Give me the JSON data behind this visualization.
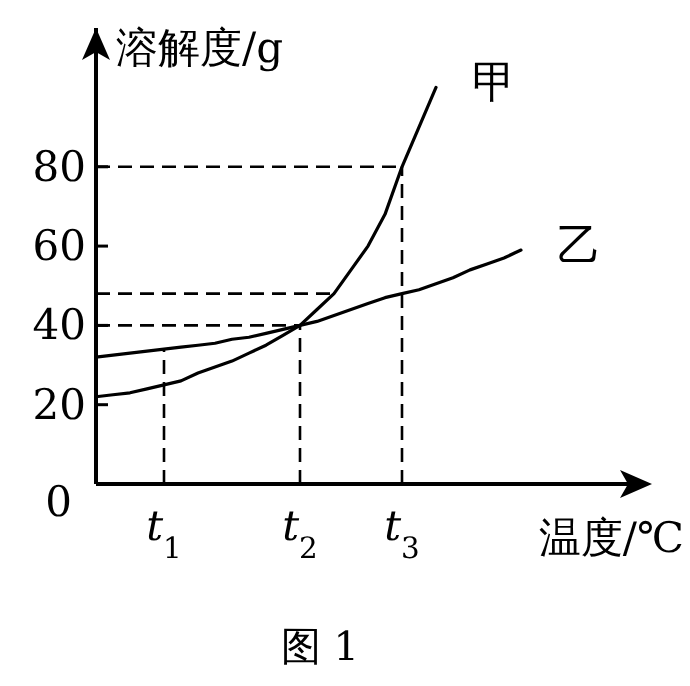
{
  "chart_data": {
    "type": "line",
    "xlabel": "温度/℃",
    "ylabel": "溶解度/g",
    "annotations": [
      "图 1"
    ],
    "ylim": [
      0,
      115
    ],
    "categories": [
      null,
      null,
      null,
      null,
      "*t*$_{1}$",
      null,
      null,
      null,
      null,
      null,
      null,
      null,
      "*t*$_{2}$",
      null,
      null,
      null,
      null,
      null,
      "*t*$_{3}$",
      null,
      null,
      null,
      null,
      null,
      null,
      null
    ],
    "yticks": [
      0,
      20,
      40,
      60,
      80
    ],
    "series": [
      {
        "name": "甲",
        "color": "#000000",
        "values": [
          22,
          22.5,
          23,
          24,
          25,
          26,
          28,
          29.5,
          31,
          33,
          35,
          37.5,
          40,
          44,
          48,
          54,
          60,
          68,
          80,
          90,
          100,
          null,
          null,
          null,
          null,
          null
        ]
      },
      {
        "name": "乙",
        "color": "#000000",
        "values": [
          32,
          32.5,
          33,
          33.5,
          34,
          34.5,
          35,
          35.5,
          36.5,
          37,
          38,
          39,
          40,
          41,
          42.5,
          44,
          45.5,
          47,
          48,
          49,
          50.5,
          52,
          54,
          55.5,
          57,
          59
        ]
      }
    ],
    "ref_lines": [
      {
        "axis": "x",
        "value": "*t*$_{1}$",
        "line_style": "dashed"
      },
      {
        "axis": "x",
        "value": "*t*$_{2}$",
        "line_style": "dashed"
      },
      {
        "axis": "x",
        "value": "*t*$_{3}$",
        "line_style": "dashed"
      },
      {
        "axis": "y",
        "value": 40,
        "line_style": "dashed"
      },
      {
        "axis": "y",
        "value": 48,
        "line_style": "dashed"
      },
      {
        "axis": "y",
        "value": 80,
        "line_style": "dashed"
      }
    ],
    "grid": false,
    "marker": "none",
    "line_style": "solid"
  }
}
